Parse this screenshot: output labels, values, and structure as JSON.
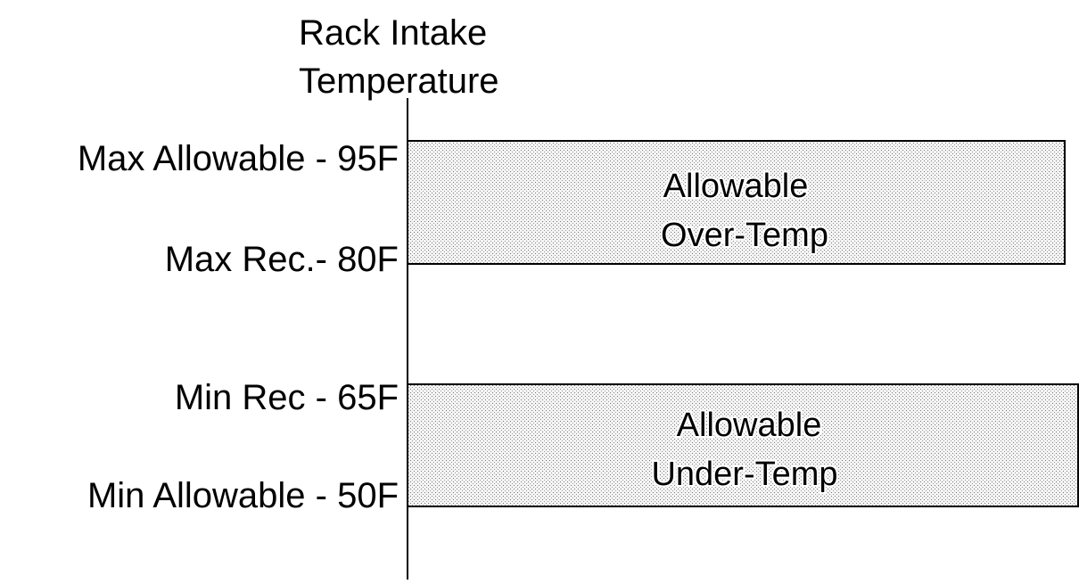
{
  "axis": {
    "title": [
      "Rack Intake",
      "Temperature"
    ]
  },
  "levels": [
    "Max Allowable - 95F",
    "Max Rec.- 80F",
    "Min Rec - 65F",
    "Min Allowable - 50F"
  ],
  "zones": [
    {
      "lines": [
        "Allowable",
        "Over-Temp"
      ]
    },
    {
      "lines": [
        "Allowable",
        "Under-Temp"
      ]
    }
  ]
}
